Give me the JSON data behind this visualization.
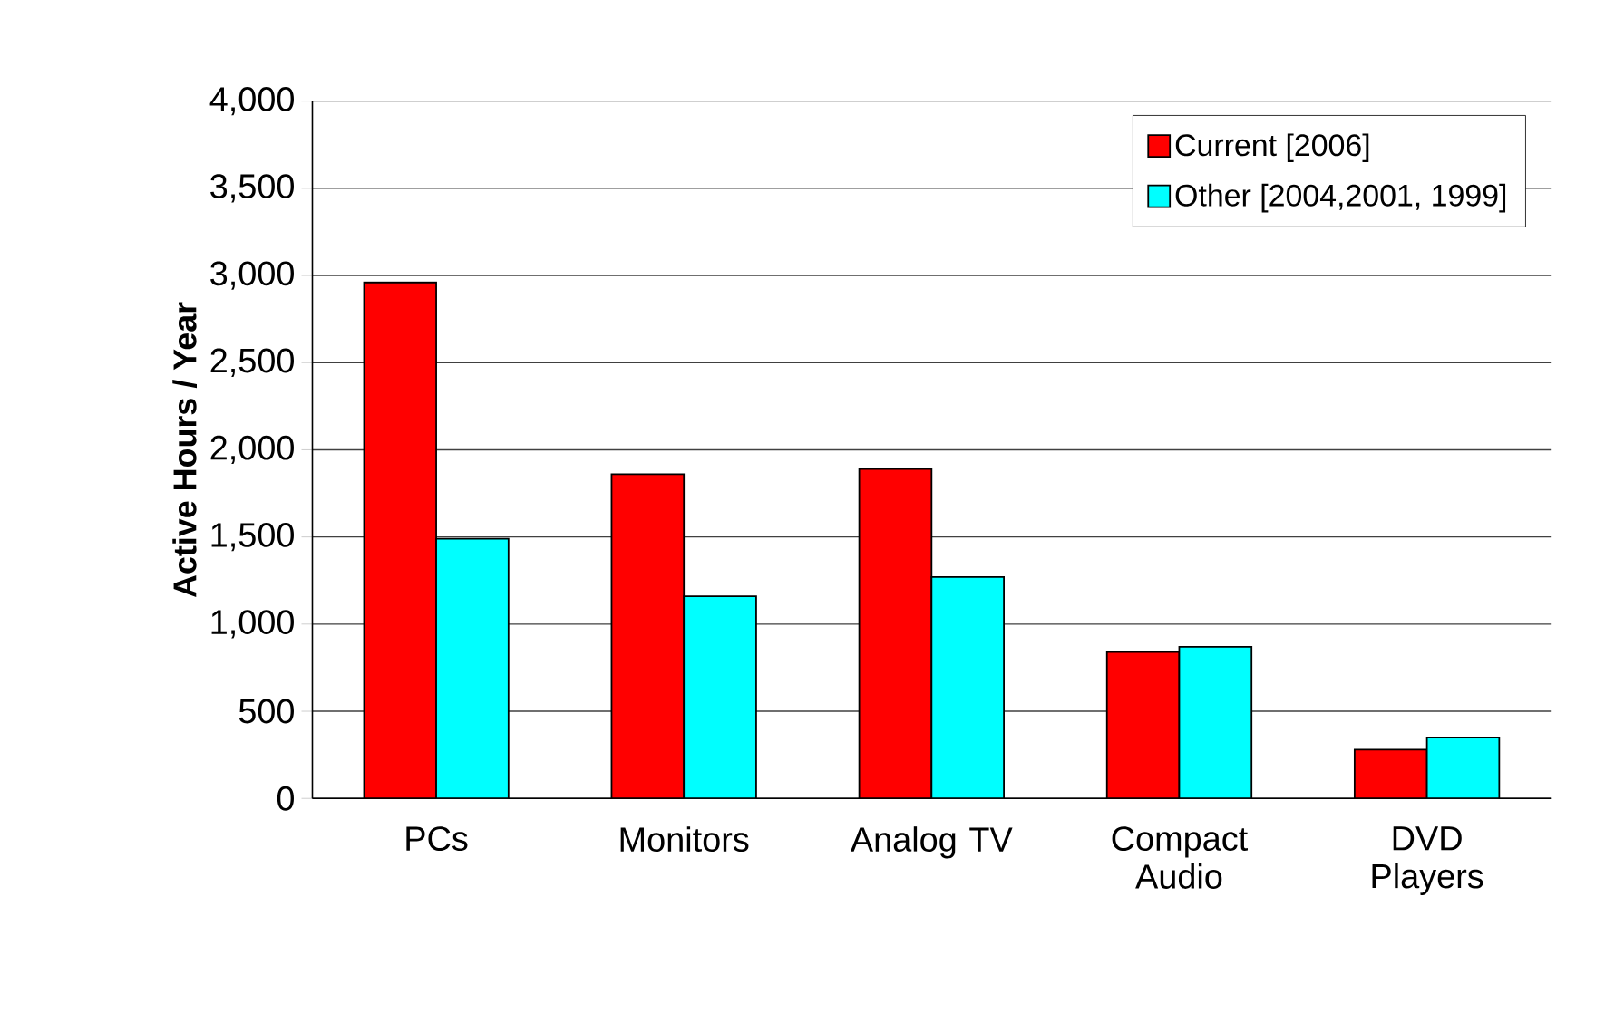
{
  "chart_data": {
    "type": "bar",
    "ylabel": "Active Hours / Year",
    "categories": [
      "PCs",
      "Monitors",
      "Analog TV",
      "Compact Audio",
      "DVD Players"
    ],
    "series": [
      {
        "name": "Current [2006]",
        "color": "#ff0000",
        "values": [
          2960,
          1860,
          1890,
          840,
          280
        ]
      },
      {
        "name": "Other [2004,2001, 1999]",
        "color": "#00ffff",
        "values": [
          1490,
          1160,
          1270,
          870,
          350
        ]
      }
    ],
    "ylim": [
      0,
      4000
    ],
    "yticks": [
      {
        "value": 0,
        "label": "0"
      },
      {
        "value": 500,
        "label": "500"
      },
      {
        "value": 1000,
        "label": "1,000"
      },
      {
        "value": 1500,
        "label": "1,500"
      },
      {
        "value": 2000,
        "label": "2,000"
      },
      {
        "value": 2500,
        "label": "2,500"
      },
      {
        "value": 3000,
        "label": "3,000"
      },
      {
        "value": 3500,
        "label": "3,500"
      },
      {
        "value": 4000,
        "label": "4,000"
      }
    ],
    "grid": "y",
    "legend": "top right"
  }
}
